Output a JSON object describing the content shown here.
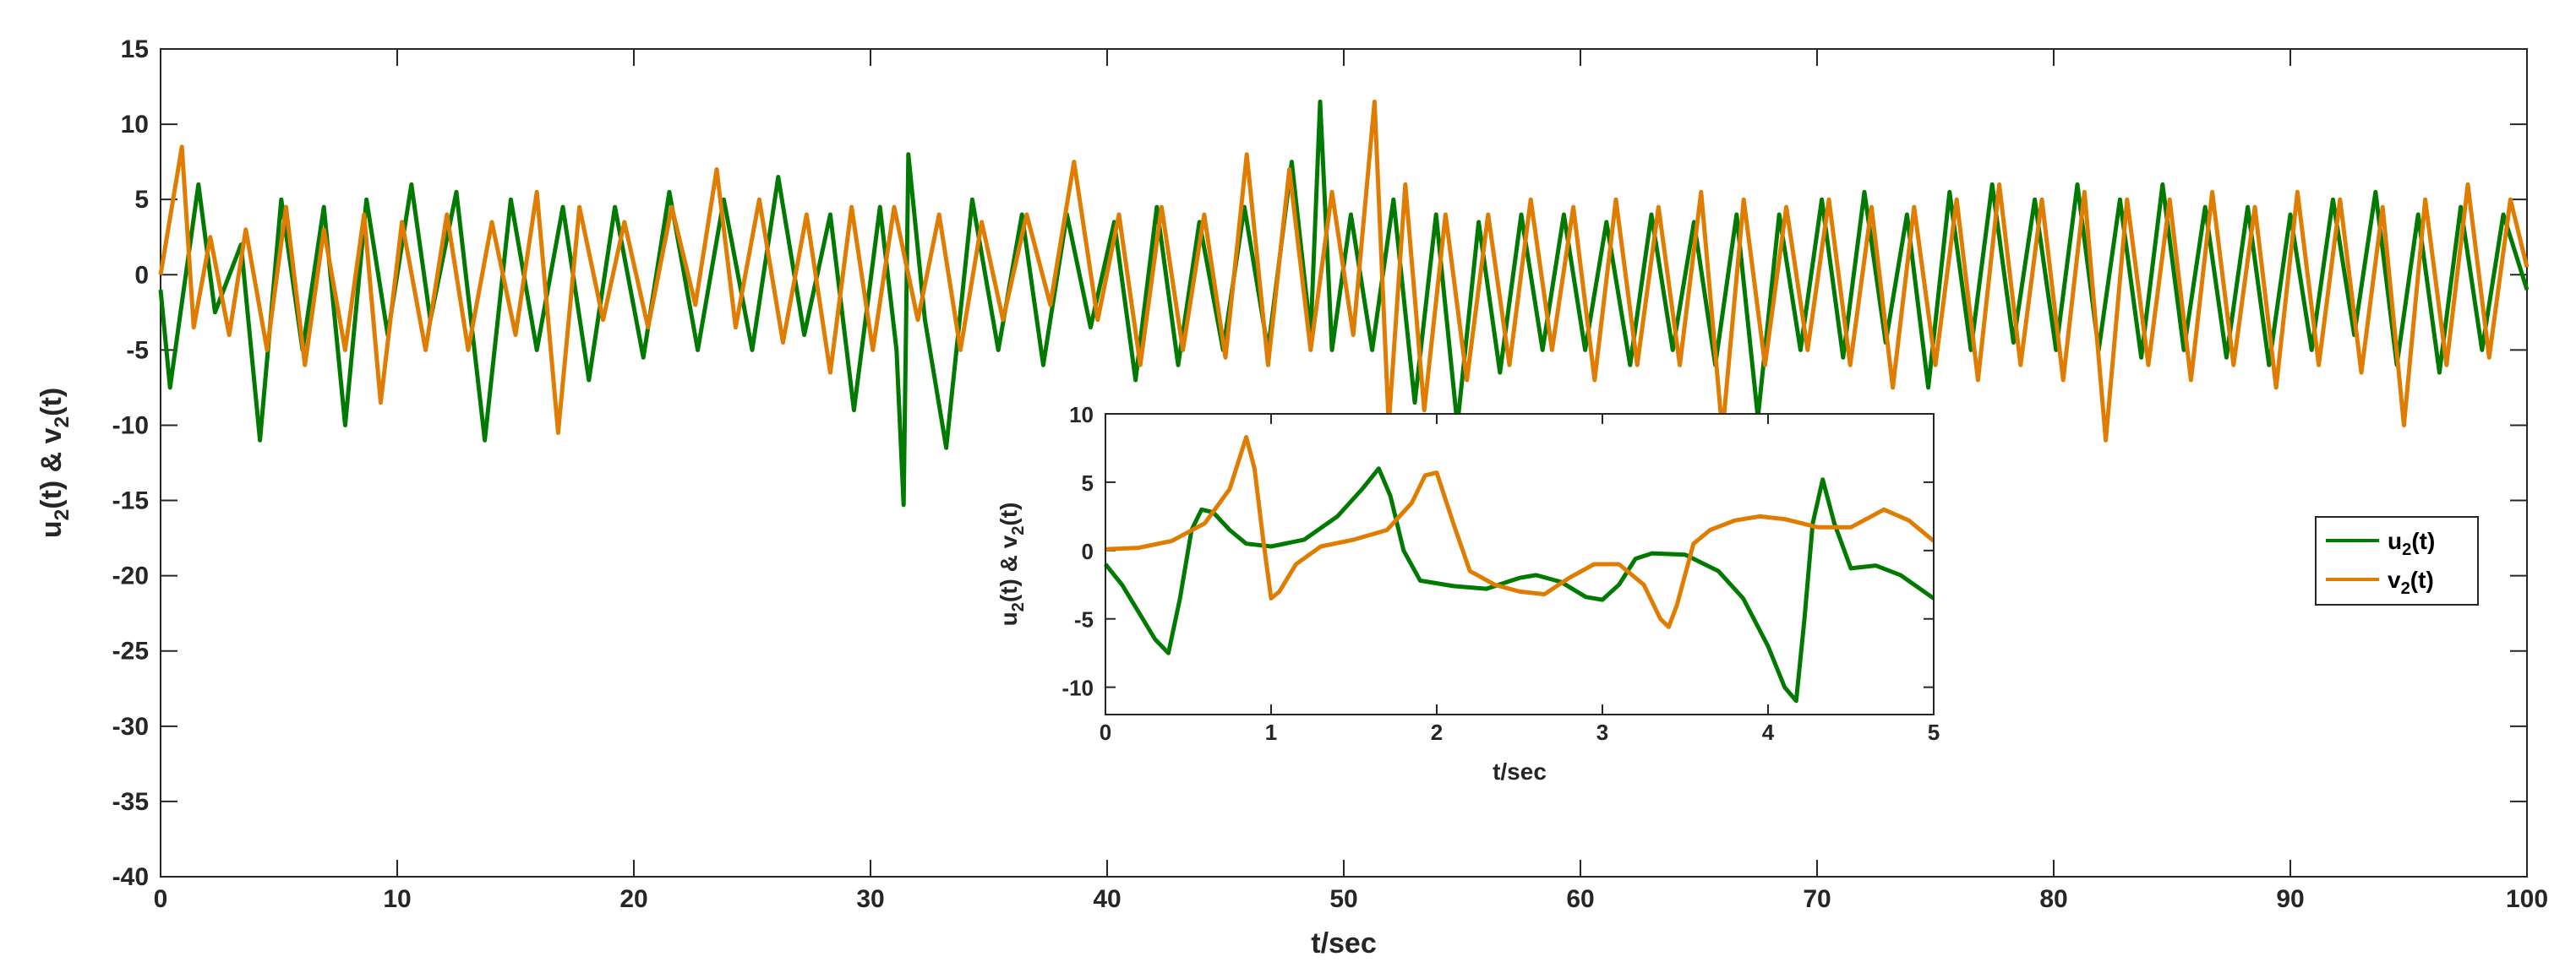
{
  "chart_data": [
    {
      "type": "line",
      "xlabel": "t/sec",
      "ylabel_main": "u",
      "ylabel_sub1": "2",
      "ylabel_mid": "(t) & v",
      "ylabel_sub2": "2",
      "ylabel_end": "(t)",
      "xlim": [
        0,
        100
      ],
      "ylim": [
        -40,
        15
      ],
      "xticks": [
        0,
        10,
        20,
        30,
        40,
        50,
        60,
        70,
        80,
        90,
        100
      ],
      "yticks": [
        -40,
        -35,
        -30,
        -25,
        -20,
        -15,
        -10,
        -5,
        0,
        5,
        10,
        15
      ],
      "series": [
        {
          "name": "u2(t)",
          "color": "#007a00",
          "x": [
            0,
            0.4,
            1.6,
            2.3,
            3.4,
            4.2,
            5.1,
            6.0,
            6.9,
            7.8,
            8.7,
            9.6,
            10.6,
            11.4,
            12.5,
            13.7,
            14.8,
            15.9,
            17.0,
            18.1,
            19.2,
            20.4,
            21.5,
            22.7,
            23.8,
            25.0,
            26.1,
            27.2,
            28.3,
            29.3,
            30.4,
            31.1,
            31.4,
            31.6,
            32.3,
            33.2,
            34.3,
            35.4,
            36.4,
            37.3,
            38.3,
            39.3,
            40.3,
            41.2,
            42.1,
            43.0,
            43.9,
            44.9,
            45.8,
            46.8,
            47.8,
            48.6,
            49.0,
            49.5,
            50.3,
            51.2,
            52.1,
            53.0,
            53.9,
            54.8,
            55.7,
            56.6,
            57.5,
            58.4,
            59.3,
            60.2,
            61.1,
            62.1,
            63.0,
            63.9,
            64.8,
            65.7,
            66.6,
            67.5,
            68.4,
            69.3,
            70.2,
            71.1,
            72.0,
            72.9,
            73.8,
            74.7,
            75.6,
            76.5,
            77.4,
            78.3,
            79.2,
            80.1,
            81.0,
            81.9,
            82.8,
            83.7,
            84.6,
            85.5,
            86.4,
            87.3,
            88.2,
            89.1,
            90.0,
            90.9,
            91.8,
            92.7,
            93.6,
            94.5,
            95.4,
            96.3,
            97.2,
            98.1,
            99.0,
            100
          ],
          "y": [
            -1,
            -7.5,
            6,
            -2.5,
            2,
            -11,
            5,
            -5,
            4.5,
            -10,
            5,
            -4,
            6,
            -3,
            5.5,
            -11,
            5,
            -5,
            4.5,
            -7,
            4.5,
            -5.5,
            5.5,
            -5,
            5,
            -5,
            6.5,
            -4,
            4,
            -9,
            4.5,
            -5,
            -15.3,
            8,
            -3,
            -11.5,
            5,
            -5,
            4,
            -6,
            4,
            -3.5,
            3.5,
            -7,
            4.5,
            -6,
            3.5,
            -5,
            4.5,
            -5,
            7.5,
            -4,
            11.5,
            -5,
            4,
            -5,
            5,
            -8.5,
            4,
            -10,
            3.5,
            -6.5,
            4,
            -5,
            4,
            -5,
            3.5,
            -6,
            4,
            -5,
            3.5,
            -6,
            4,
            -9.5,
            4,
            -5,
            5,
            -5.5,
            5.5,
            -4.5,
            4,
            -7.5,
            5.5,
            -5,
            6,
            -4.5,
            5,
            -5,
            6,
            -5,
            5,
            -5.5,
            6,
            -5,
            4.5,
            -5.5,
            4.5,
            -6,
            4,
            -5,
            5,
            -4,
            5.5,
            -6,
            4,
            -6.5,
            4.5,
            -5,
            4,
            -1
          ]
        },
        {
          "name": "v2(t)",
          "color": "#e07c00",
          "x": [
            0,
            0.9,
            1.4,
            2.1,
            2.9,
            3.6,
            4.5,
            5.3,
            6.1,
            6.9,
            7.8,
            8.6,
            9.3,
            10.2,
            11.2,
            12.1,
            13.0,
            14.0,
            15.0,
            15.9,
            16.8,
            17.7,
            18.7,
            19.6,
            20.6,
            21.6,
            22.6,
            23.5,
            24.3,
            25.3,
            26.3,
            27.3,
            28.3,
            29.2,
            30.1,
            31.0,
            32.0,
            32.9,
            33.8,
            34.7,
            35.6,
            36.6,
            37.6,
            38.6,
            39.6,
            40.5,
            41.4,
            42.3,
            43.2,
            44.1,
            45.0,
            45.9,
            46.8,
            47.7,
            48.6,
            49.5,
            50.4,
            51.3,
            51.9,
            52.6,
            53.4,
            54.3,
            55.2,
            56.1,
            57.0,
            57.9,
            58.8,
            59.7,
            60.6,
            61.5,
            62.4,
            63.3,
            64.2,
            65.1,
            66.0,
            66.9,
            67.8,
            68.7,
            69.6,
            70.5,
            71.4,
            72.3,
            73.2,
            74.1,
            75.0,
            75.9,
            76.8,
            77.7,
            78.6,
            79.5,
            80.4,
            81.3,
            82.2,
            83.1,
            84.0,
            84.9,
            85.8,
            86.7,
            87.6,
            88.5,
            89.4,
            90.3,
            91.2,
            92.1,
            93.0,
            93.9,
            94.8,
            95.7,
            96.6,
            97.5,
            98.4,
            99.3,
            100
          ],
          "y": [
            0,
            8.5,
            -3.5,
            2.5,
            -4,
            3,
            -5,
            4.5,
            -6,
            3,
            -5,
            4,
            -8.5,
            3.5,
            -5,
            4,
            -5,
            3.5,
            -4,
            5.5,
            -10.5,
            4.5,
            -3,
            3.5,
            -3.5,
            4.5,
            -2,
            7,
            -3.5,
            5,
            -4.5,
            4,
            -6.5,
            4.5,
            -5,
            4.5,
            -3,
            4,
            -5,
            3.5,
            -3,
            4,
            -2,
            7.5,
            -3,
            4,
            -6,
            4.5,
            -5,
            4,
            -5.5,
            8,
            -6,
            7,
            -5,
            5.5,
            -4,
            11.5,
            -10,
            6,
            -9,
            4,
            -7,
            4,
            -6,
            5,
            -5,
            4.5,
            -7,
            5,
            -6,
            4.5,
            -6,
            5.5,
            -10.5,
            5,
            -6,
            4.5,
            -5,
            5,
            -6,
            4.5,
            -7.5,
            4.5,
            -6,
            5,
            -7,
            6,
            -6,
            5,
            -7,
            5.5,
            -11,
            5,
            -6,
            5,
            -7,
            5.5,
            -6,
            4.5,
            -7.5,
            5.5,
            -6,
            5,
            -6.5,
            4.5,
            -10,
            5,
            -6,
            6,
            -5.5,
            5,
            0.5
          ]
        }
      ]
    },
    {
      "type": "line",
      "xlabel": "t/sec",
      "ylabel_main": "u",
      "ylabel_sub1": "2",
      "ylabel_mid": "(t) & v",
      "ylabel_sub2": "2",
      "ylabel_end": "(t)",
      "xlim": [
        0,
        5
      ],
      "ylim": [
        -12,
        10
      ],
      "xticks": [
        0,
        1,
        2,
        3,
        4,
        5
      ],
      "yticks": [
        -10,
        -5,
        0,
        5,
        10
      ],
      "series": [
        {
          "name": "u2(t)",
          "color": "#007a00",
          "x": [
            0,
            0.1,
            0.2,
            0.3,
            0.38,
            0.45,
            0.52,
            0.58,
            0.65,
            0.75,
            0.85,
            1.0,
            1.2,
            1.4,
            1.55,
            1.65,
            1.72,
            1.8,
            1.9,
            2.1,
            2.3,
            2.5,
            2.6,
            2.75,
            2.9,
            3.0,
            3.1,
            3.2,
            3.3,
            3.5,
            3.7,
            3.85,
            4.0,
            4.1,
            4.17,
            4.22,
            4.27,
            4.33,
            4.4,
            4.5,
            4.65,
            4.8,
            5.0
          ],
          "y": [
            -1,
            -2.5,
            -4.5,
            -6.5,
            -7.5,
            -3.5,
            1.5,
            3,
            2.8,
            1.5,
            0.5,
            0.3,
            0.8,
            2.5,
            4.5,
            6,
            4,
            0,
            -2.2,
            -2.6,
            -2.8,
            -2,
            -1.8,
            -2.3,
            -3.4,
            -3.6,
            -2.5,
            -0.6,
            -0.2,
            -0.3,
            -1.5,
            -3.5,
            -7,
            -10,
            -11,
            -5,
            2,
            5.2,
            2,
            -1.3,
            -1.1,
            -1.8,
            -3.5
          ]
        },
        {
          "name": "v2(t)",
          "color": "#e07c00",
          "x": [
            0,
            0.2,
            0.4,
            0.6,
            0.75,
            0.85,
            0.9,
            0.95,
            1.0,
            1.05,
            1.15,
            1.3,
            1.5,
            1.7,
            1.85,
            1.93,
            2.0,
            2.1,
            2.2,
            2.35,
            2.5,
            2.65,
            2.8,
            2.95,
            3.1,
            3.25,
            3.35,
            3.4,
            3.45,
            3.55,
            3.65,
            3.8,
            3.95,
            4.1,
            4.3,
            4.5,
            4.7,
            4.85,
            5.0
          ],
          "y": [
            0.1,
            0.2,
            0.7,
            2,
            4.5,
            8.3,
            6,
            1,
            -3.5,
            -3,
            -1,
            0.3,
            0.8,
            1.5,
            3.5,
            5.5,
            5.7,
            2,
            -1.5,
            -2.5,
            -3,
            -3.2,
            -2,
            -1,
            -1,
            -2.5,
            -5,
            -5.6,
            -4,
            0.5,
            1.5,
            2.2,
            2.5,
            2.3,
            1.7,
            1.7,
            3,
            2.2,
            0.7
          ]
        }
      ]
    }
  ],
  "legend": {
    "items": [
      {
        "label_main": "u",
        "label_sub": "2",
        "label_end": "(t)",
        "color": "#007a00"
      },
      {
        "label_main": "v",
        "label_sub": "2",
        "label_end": "(t)",
        "color": "#e07c00"
      }
    ]
  }
}
